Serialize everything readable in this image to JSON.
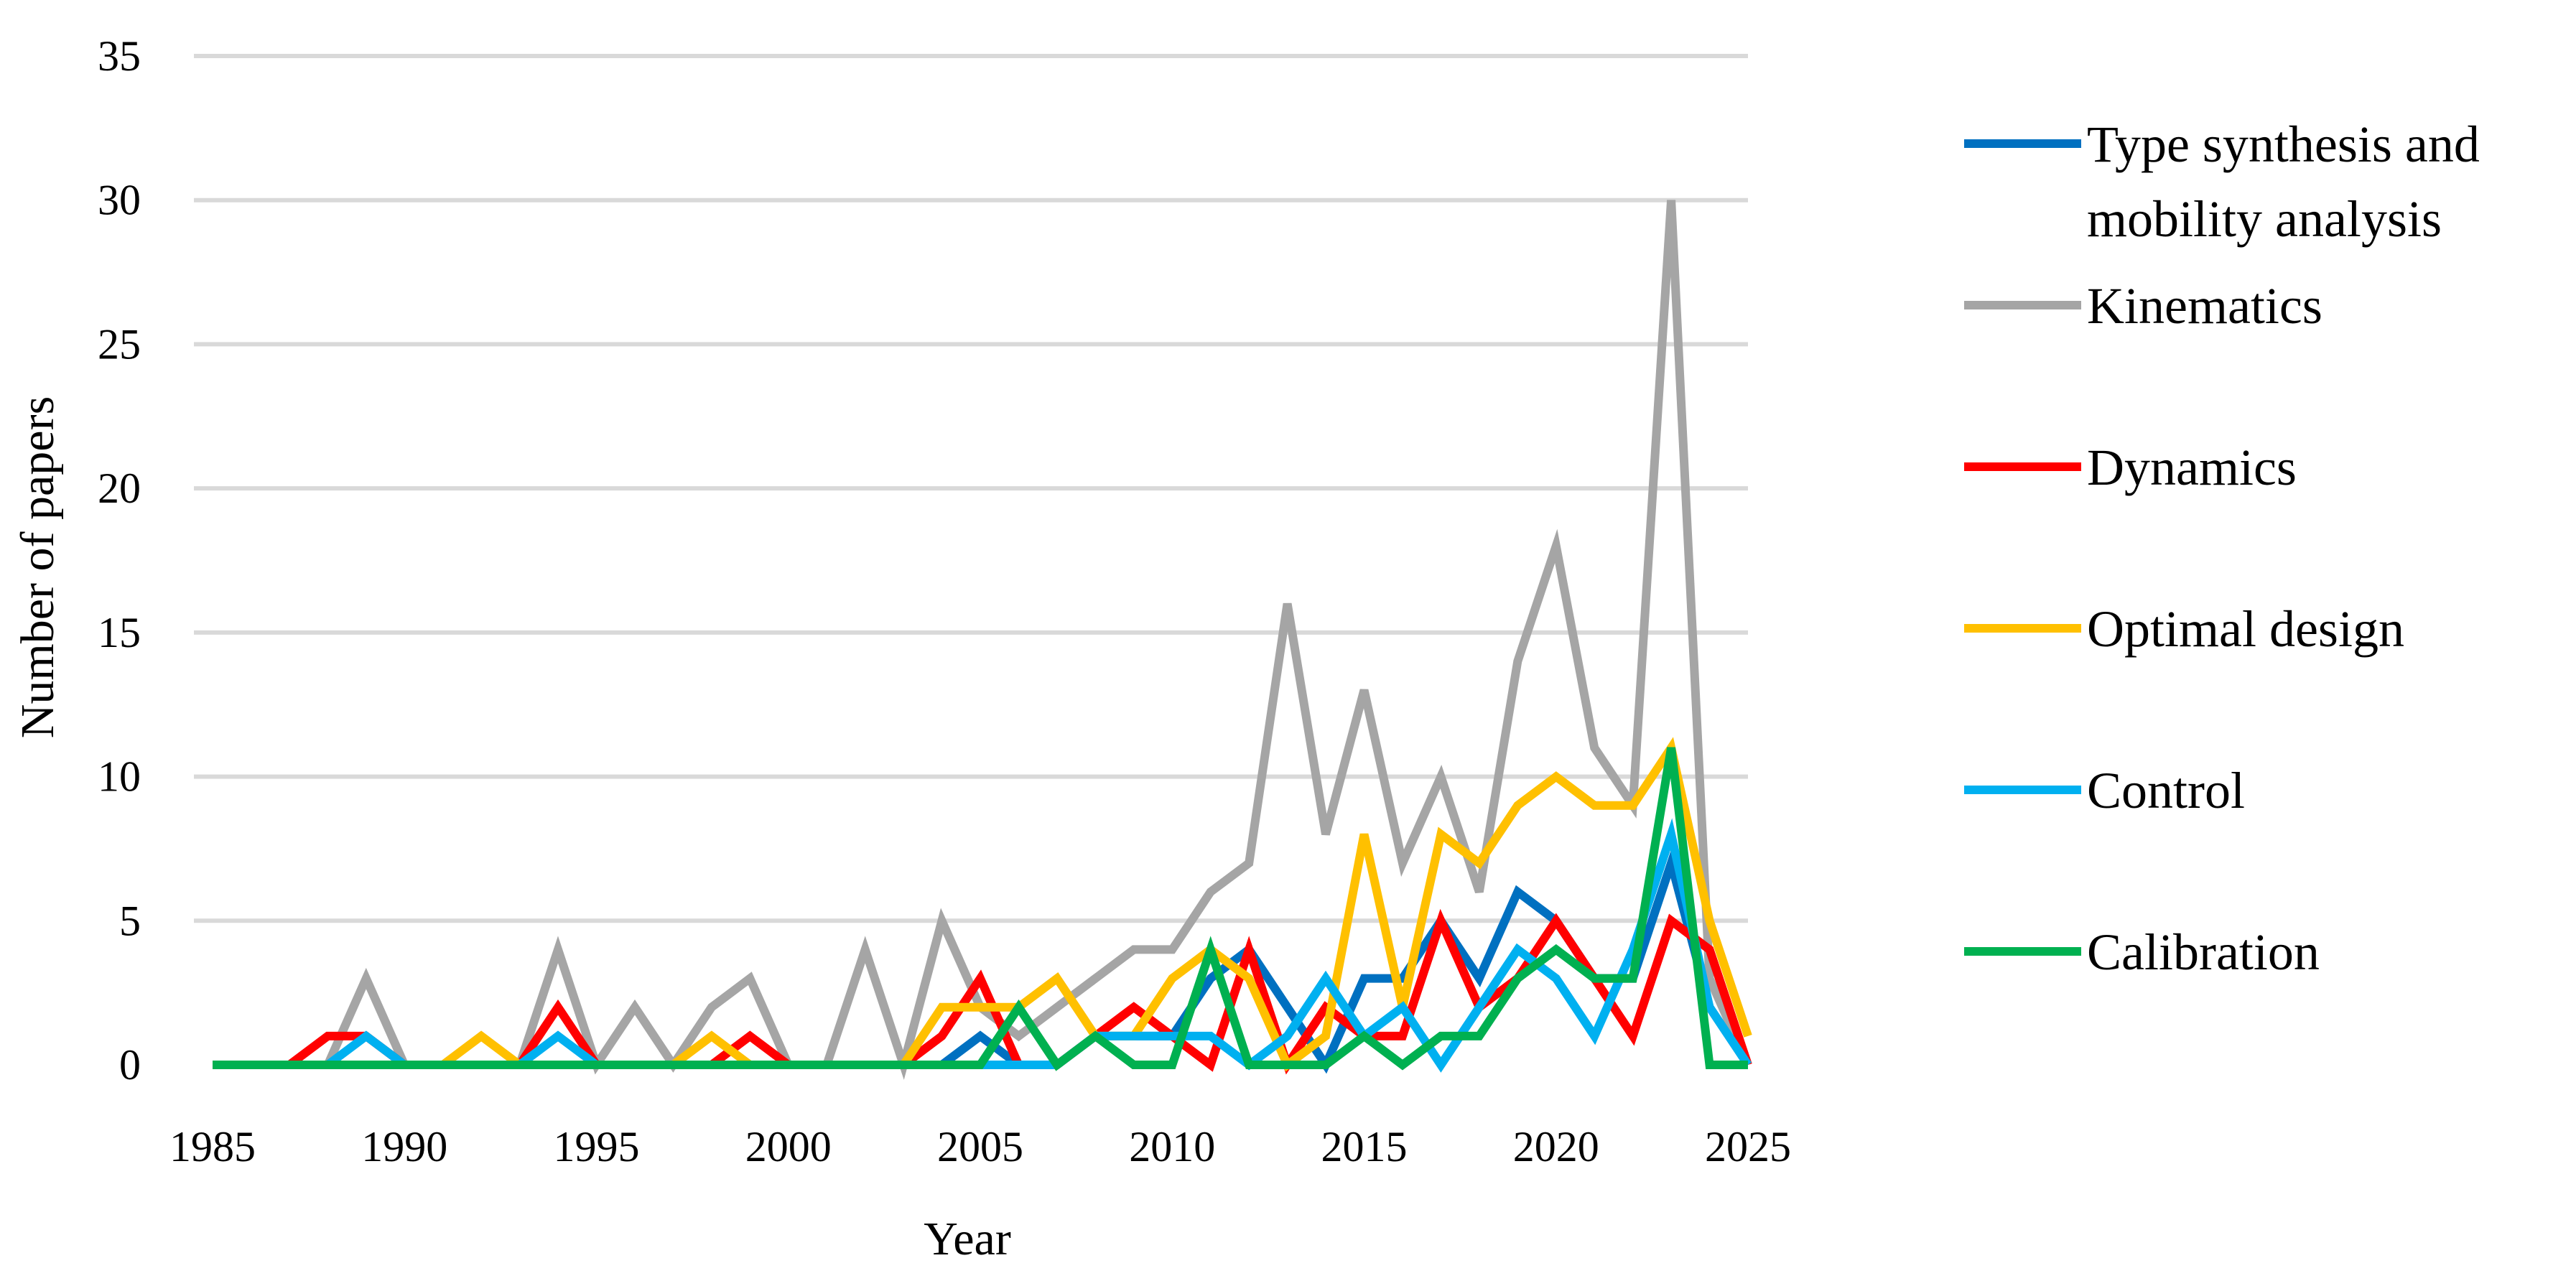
{
  "chart_data": {
    "type": "line",
    "xlabel": "Year",
    "ylabel": "Number of papers",
    "xlim": [
      1985,
      2025
    ],
    "ylim": [
      0,
      35
    ],
    "x_ticks": [
      1985,
      1990,
      1995,
      2000,
      2005,
      2010,
      2015,
      2020,
      2025
    ],
    "y_ticks": [
      0,
      5,
      10,
      15,
      20,
      25,
      30,
      35
    ],
    "grid": "horizontal",
    "legend_position": "right",
    "x": [
      1985,
      1986,
      1987,
      1988,
      1989,
      1990,
      1991,
      1992,
      1993,
      1994,
      1995,
      1996,
      1997,
      1998,
      1999,
      2000,
      2001,
      2002,
      2003,
      2004,
      2005,
      2006,
      2007,
      2008,
      2009,
      2010,
      2011,
      2012,
      2013,
      2014,
      2015,
      2016,
      2017,
      2018,
      2019,
      2020,
      2021,
      2022,
      2023,
      2024,
      2025
    ],
    "series": [
      {
        "name": "Type synthesis and mobility analysis",
        "name_lines": [
          "Type synthesis and",
          "mobility analysis"
        ],
        "color": "#0070c0",
        "values": [
          0,
          0,
          0,
          0,
          0,
          0,
          0,
          0,
          0,
          0,
          0,
          0,
          0,
          0,
          0,
          0,
          0,
          0,
          0,
          0,
          1,
          0,
          0,
          1,
          1,
          1,
          3,
          4,
          2,
          0,
          3,
          3,
          5,
          3,
          6,
          5,
          3,
          3,
          7,
          2,
          0
        ]
      },
      {
        "name": "Kinematics",
        "name_lines": [
          "Kinematics"
        ],
        "color": "#a5a5a5",
        "values": [
          0,
          0,
          0,
          0,
          3,
          0,
          0,
          0,
          0,
          4,
          0,
          2,
          0,
          2,
          3,
          0,
          0,
          4,
          0,
          5,
          2,
          1,
          2,
          3,
          4,
          4,
          6,
          7,
          16,
          8,
          13,
          7,
          10,
          6,
          14,
          18,
          11,
          9,
          30,
          3,
          0
        ]
      },
      {
        "name": "Dynamics",
        "name_lines": [
          "Dynamics"
        ],
        "color": "#ff0000",
        "values": [
          0,
          0,
          0,
          1,
          1,
          0,
          0,
          0,
          0,
          2,
          0,
          0,
          0,
          0,
          1,
          0,
          0,
          0,
          0,
          1,
          3,
          0,
          0,
          1,
          2,
          1,
          0,
          4,
          0,
          2,
          1,
          1,
          5,
          2,
          3,
          5,
          3,
          1,
          5,
          4,
          0
        ]
      },
      {
        "name": "Optimal design",
        "name_lines": [
          "Optimal design"
        ],
        "color": "#ffc000",
        "values": [
          0,
          0,
          0,
          0,
          0,
          0,
          0,
          1,
          0,
          0,
          0,
          0,
          0,
          1,
          0,
          0,
          0,
          0,
          0,
          2,
          2,
          2,
          3,
          1,
          1,
          3,
          4,
          3,
          0,
          1,
          8,
          2,
          8,
          7,
          9,
          10,
          9,
          9,
          11,
          5,
          1
        ]
      },
      {
        "name": "Control",
        "name_lines": [
          "Control"
        ],
        "color": "#00b0f0",
        "values": [
          0,
          0,
          0,
          0,
          1,
          0,
          0,
          0,
          0,
          1,
          0,
          0,
          0,
          0,
          0,
          0,
          0,
          0,
          0,
          0,
          0,
          0,
          0,
          1,
          1,
          1,
          1,
          0,
          1,
          3,
          1,
          2,
          0,
          2,
          4,
          3,
          1,
          4,
          8,
          2,
          0
        ]
      },
      {
        "name": "Calibration",
        "name_lines": [
          "Calibration"
        ],
        "color": "#00b050",
        "values": [
          0,
          0,
          0,
          0,
          0,
          0,
          0,
          0,
          0,
          0,
          0,
          0,
          0,
          0,
          0,
          0,
          0,
          0,
          0,
          0,
          0,
          2,
          0,
          1,
          0,
          0,
          4,
          0,
          0,
          0,
          1,
          0,
          1,
          1,
          3,
          4,
          3,
          3,
          11,
          0,
          0
        ]
      }
    ]
  }
}
